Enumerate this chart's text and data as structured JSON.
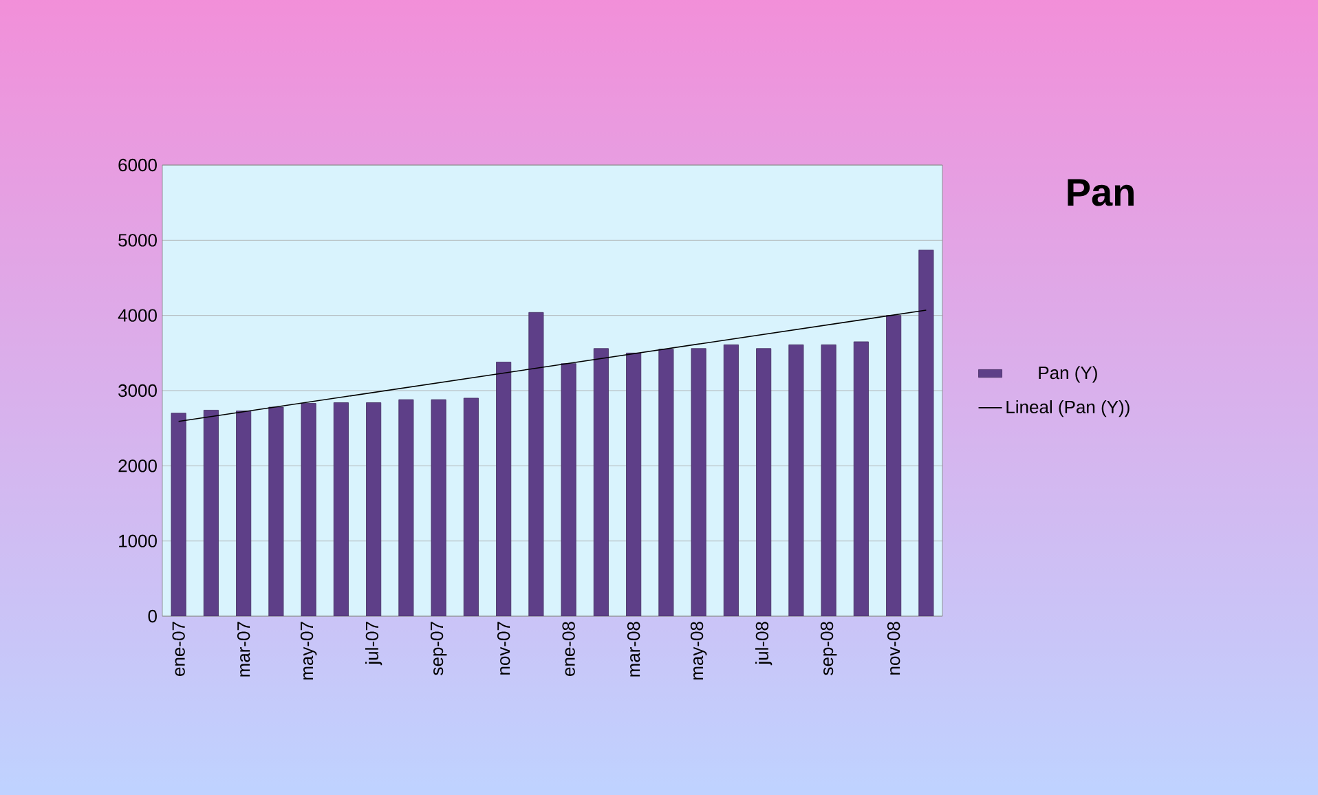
{
  "chart_data": {
    "type": "bar",
    "title": "Pan",
    "categories": [
      "ene-07",
      null,
      "mar-07",
      null,
      "may-07",
      null,
      "jul-07",
      null,
      "sep-07",
      null,
      "nov-07",
      null,
      "ene-08",
      null,
      "mar-08",
      null,
      "may-08",
      null,
      "jul-08",
      null,
      "sep-08",
      null,
      "nov-08",
      null
    ],
    "series": [
      {
        "name": "Pan (Y)",
        "color": "#5e3f88",
        "values": [
          2700,
          2740,
          2730,
          2780,
          2830,
          2840,
          2840,
          2880,
          2880,
          2900,
          3380,
          4040,
          3360,
          3560,
          3500,
          3550,
          3560,
          3610,
          3560,
          3610,
          3610,
          3650,
          4000,
          4870
        ]
      },
      {
        "name": "Lineal (Pan (Y))",
        "type": "line",
        "color": "#000000",
        "values": [
          2590,
          null,
          null,
          null,
          null,
          null,
          null,
          null,
          null,
          null,
          null,
          null,
          null,
          null,
          null,
          null,
          null,
          null,
          null,
          null,
          null,
          null,
          null,
          4070
        ]
      }
    ],
    "ylim": [
      0,
      6000
    ],
    "yticks": [
      0,
      1000,
      2000,
      3000,
      4000,
      5000,
      6000
    ],
    "grid": "y",
    "legend": "right"
  }
}
